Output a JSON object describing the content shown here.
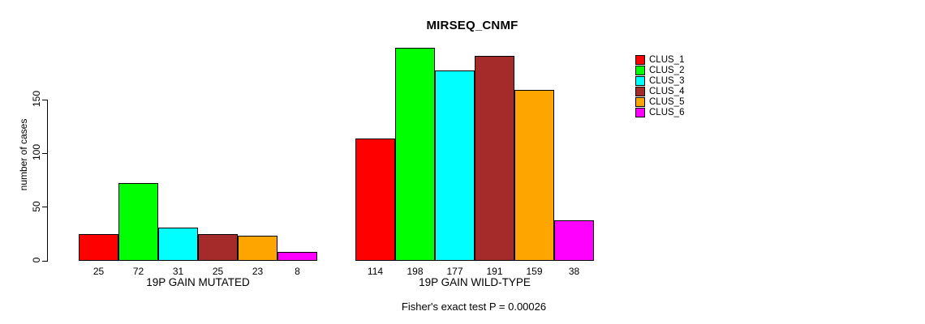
{
  "chart_data": {
    "type": "bar",
    "title": "MIRSEQ_CNMF",
    "ylabel": "number of cases",
    "xlabel": "",
    "annotation": "Fisher's exact test P = 0.00026",
    "ylim": [
      0,
      150
    ],
    "yticks": [
      0,
      50,
      100,
      150
    ],
    "grid": false,
    "legend_position": "right",
    "categories": [
      "19P GAIN MUTATED",
      "19P GAIN WILD-TYPE"
    ],
    "series": [
      {
        "name": "CLUS_1",
        "color": "#FF0000",
        "values": [
          25,
          114
        ]
      },
      {
        "name": "CLUS_2",
        "color": "#00FF00",
        "values": [
          72,
          198
        ]
      },
      {
        "name": "CLUS_3",
        "color": "#00FFFF",
        "values": [
          31,
          177
        ]
      },
      {
        "name": "CLUS_4",
        "color": "#A52A2A",
        "values": [
          25,
          191
        ]
      },
      {
        "name": "CLUS_5",
        "color": "#FFA500",
        "values": [
          23,
          159
        ]
      },
      {
        "name": "CLUS_6",
        "color": "#FF00FF",
        "values": [
          8,
          38
        ]
      }
    ],
    "bar_value_labels": [
      [
        "25",
        "72",
        "31",
        "25",
        "23",
        "8"
      ],
      [
        "114",
        "198",
        "177",
        "191",
        "159",
        "38"
      ]
    ]
  },
  "colors": {
    "axis": "#000000",
    "text": "#000000",
    "background": "#FFFFFF"
  }
}
